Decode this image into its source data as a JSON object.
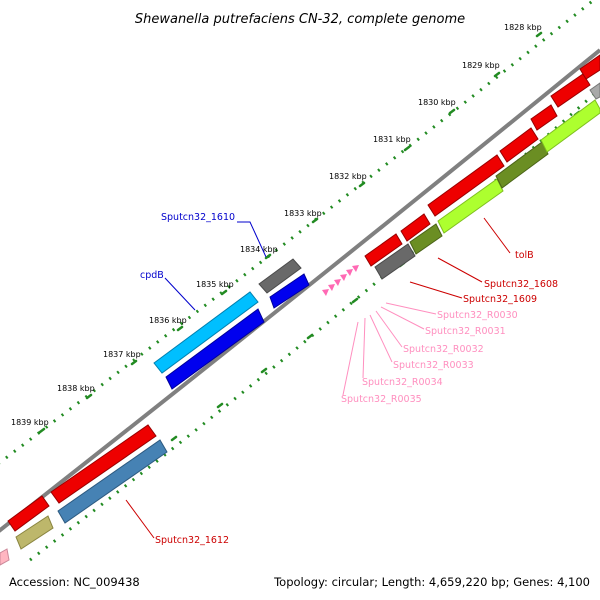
{
  "title": "Shewanella putrefaciens CN-32, complete genome",
  "footer": {
    "accession": "Accession: NC_009438",
    "summary": "Topology: circular; Length: 4,659,220 bp; Genes: 4,100"
  },
  "kbp_ticks": [
    "1828 kbp",
    "1829 kbp",
    "1830 kbp",
    "1831 kbp",
    "1832 kbp",
    "1833 kbp",
    "1834 kbp",
    "1835 kbp",
    "1836 kbp",
    "1837 kbp",
    "1838 kbp",
    "1839 kbp"
  ],
  "gene_labels": {
    "sputcn32_1610": "Sputcn32_1610",
    "cpdb": "cpdB",
    "tolb": "tolB",
    "sputcn32_1608": "Sputcn32_1608",
    "sputcn32_1609": "Sputcn32_1609",
    "r0030": "Sputcn32_R0030",
    "r0031": "Sputcn32_R0031",
    "r0032": "Sputcn32_R0032",
    "r0033": "Sputcn32_R0033",
    "r0034": "Sputcn32_R0034",
    "r0035": "Sputcn32_R0035",
    "sputcn32_1612": "Sputcn32_1612"
  },
  "colors": {
    "backbone": "#808080",
    "ruler_dots": "#228b22",
    "cds_red": "#ee0000",
    "cds_lime": "#adff2f",
    "cds_olive": "#6b8e23",
    "cds_gray": "#696969",
    "cds_blue": "#0000ee",
    "cds_cyan": "#00bfff",
    "cds_steel": "#4682b4",
    "cds_khaki": "#bdb76b",
    "rna_pink": "#ff69b4",
    "label_blue": "#0000cc",
    "label_red": "#cc0000",
    "label_pink": "#ff8fbf"
  }
}
